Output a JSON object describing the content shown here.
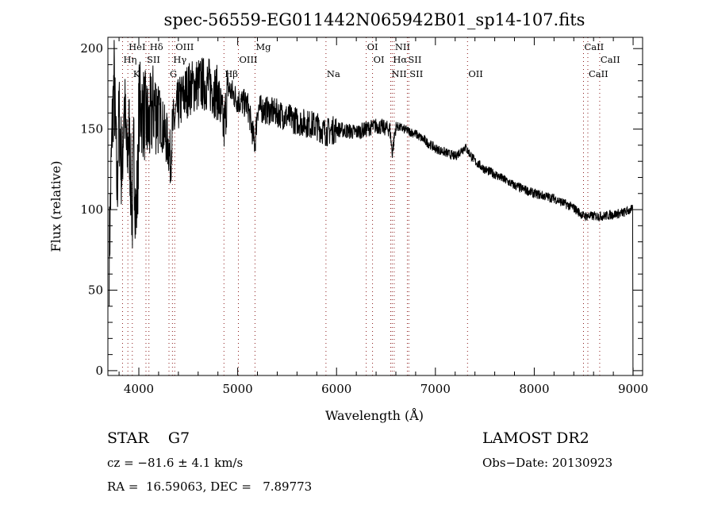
{
  "chart_data": {
    "type": "line",
    "title": "spec-56559-EG011442N065942B01_sp14-107.fits",
    "xlabel": "Wavelength (Å)",
    "ylabel": "Flux (relative)",
    "xlim": [
      3687,
      9096
    ],
    "ylim": [
      -3,
      207
    ],
    "x_ticks": [
      "4000",
      "5000",
      "6000",
      "7000",
      "8000",
      "9000"
    ],
    "y_ticks": [
      "0",
      "50",
      "100",
      "150",
      "200"
    ],
    "grid": false,
    "series": [
      {
        "name": "spectrum",
        "x": [
          3700,
          3730,
          3750,
          3780,
          3800,
          3830,
          3850,
          3880,
          3900,
          3934,
          3950,
          3970,
          3990,
          4000,
          4050,
          4100,
          4150,
          4200,
          4250,
          4300,
          4320,
          4340,
          4400,
          4500,
          4600,
          4700,
          4800,
          4861,
          4900,
          5000,
          5100,
          5175,
          5200,
          5400,
          5600,
          5800,
          5890,
          6000,
          6200,
          6400,
          6540,
          6563,
          6600,
          6800,
          7000,
          7200,
          7300,
          7400,
          7500,
          7600,
          7800,
          8000,
          8200,
          8400,
          8500,
          8700,
          8900,
          8980,
          8995
        ],
        "y": [
          70,
          150,
          180,
          110,
          160,
          120,
          170,
          130,
          150,
          95,
          140,
          95,
          120,
          165,
          160,
          150,
          165,
          160,
          150,
          140,
          130,
          150,
          165,
          175,
          178,
          178,
          172,
          150,
          176,
          168,
          165,
          140,
          163,
          160,
          155,
          152,
          148,
          150,
          148,
          152,
          150,
          135,
          152,
          147,
          138,
          133,
          139,
          130,
          125,
          122,
          115,
          110,
          107,
          101,
          96,
          96,
          98,
          100,
          100
        ]
      }
    ],
    "line_markers": [
      {
        "label": "HeI",
        "wavelength": 3889,
        "row": 1
      },
      {
        "label": "Hδ",
        "wavelength": 4102,
        "row": 1
      },
      {
        "label": "OIII",
        "wavelength": 4363,
        "row": 1
      },
      {
        "label": "Mg",
        "wavelength": 5175,
        "row": 1
      },
      {
        "label": "OI",
        "wavelength": 6300,
        "row": 1
      },
      {
        "label": "NII",
        "wavelength": 6583,
        "row": 1
      },
      {
        "label": "CaII",
        "wavelength": 8498,
        "row": 1
      },
      {
        "label": "Hη",
        "wavelength": 3835,
        "row": 2
      },
      {
        "label": "SII",
        "wavelength": 4072,
        "row": 2
      },
      {
        "label": "Hγ",
        "wavelength": 4340,
        "row": 2
      },
      {
        "label": "OIII",
        "wavelength": 5007,
        "row": 2
      },
      {
        "label": "OI",
        "wavelength": 6364,
        "row": 2
      },
      {
        "label": "Hα",
        "wavelength": 6563,
        "row": 2
      },
      {
        "label": "SII",
        "wavelength": 6716,
        "row": 2
      },
      {
        "label": "CaII",
        "wavelength": 8662,
        "row": 2
      },
      {
        "label": "K",
        "wavelength": 3934,
        "row": 3
      },
      {
        "label": "G",
        "wavelength": 4305,
        "row": 3
      },
      {
        "label": "Hβ",
        "wavelength": 4861,
        "row": 3
      },
      {
        "label": "Na",
        "wavelength": 5893,
        "row": 3
      },
      {
        "label": "NII",
        "wavelength": 6548,
        "row": 3
      },
      {
        "label": "SII",
        "wavelength": 6731,
        "row": 3
      },
      {
        "label": "OII",
        "wavelength": 7325,
        "row": 3
      },
      {
        "label": "CaII",
        "wavelength": 8542,
        "row": 3
      }
    ],
    "colors": {
      "spectrum": "#000000",
      "marker": "#8b1a1a"
    }
  },
  "info": {
    "class": "STAR    G7",
    "survey": "LAMOST DR2",
    "cz": "cz = −81.6 ± 4.1 km/s",
    "obs_date": "Obs−Date: 20130923",
    "coords": "RA =  16.59063, DEC =   7.89773"
  }
}
